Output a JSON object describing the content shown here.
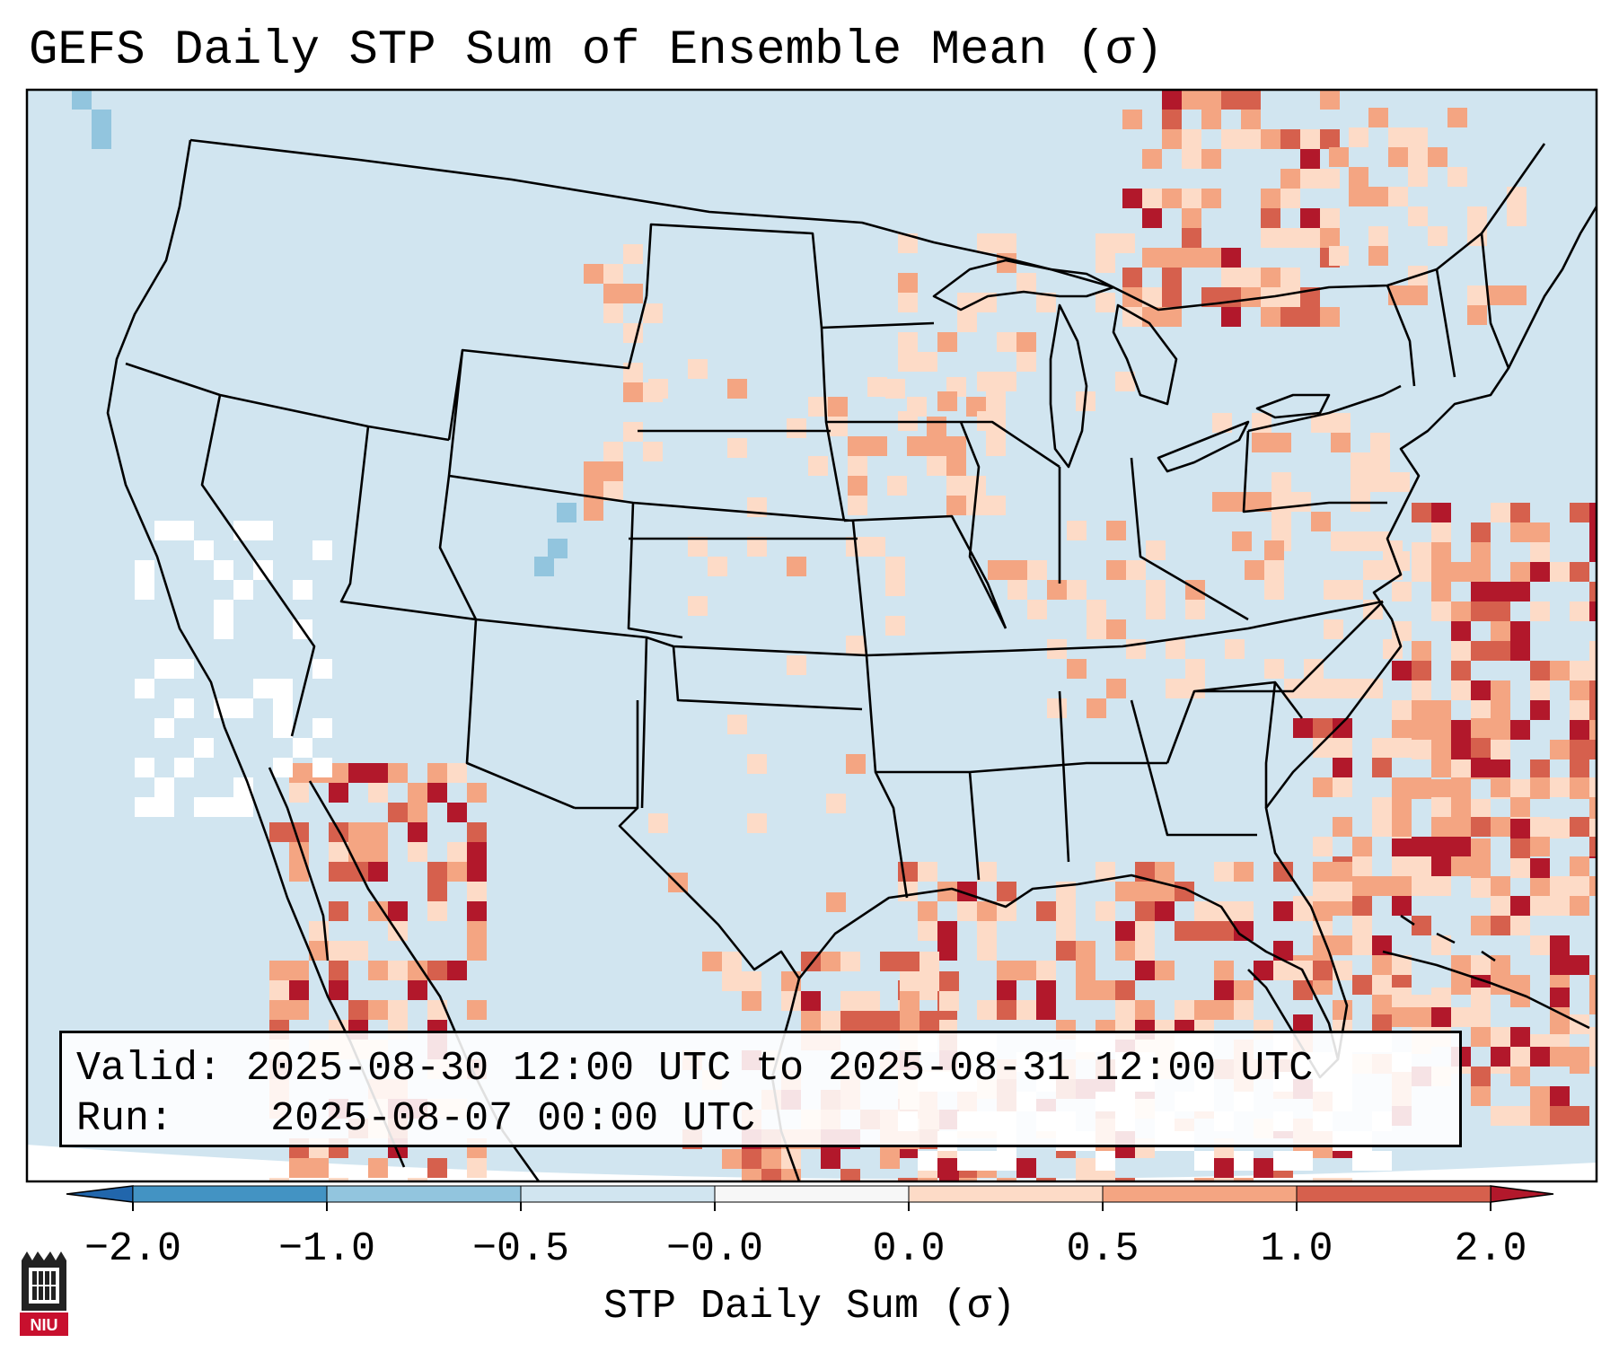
{
  "title": "GEFS Daily STP Sum of Ensemble Mean (σ)",
  "info": {
    "valid_label": "Valid:",
    "valid_value": "2025-08-30 12:00 UTC to 2025-08-31 12:00 UTC",
    "run_label": "Run:",
    "run_value": "2025-08-07 00:00 UTC"
  },
  "colorbar": {
    "label": "STP Daily Sum (σ)",
    "ticks": [
      "−2.0",
      "−1.0",
      "−0.5",
      "−0.0",
      "0.0",
      "0.5",
      "1.0",
      "2.0"
    ],
    "bins": [
      {
        "from": -2.0,
        "to": -1.0,
        "color": "#4393c3"
      },
      {
        "from": -1.0,
        "to": -0.5,
        "color": "#92c5de"
      },
      {
        "from": -0.5,
        "to": -0.0,
        "color": "#d1e5f0"
      },
      {
        "from": -0.0,
        "to": 0.0,
        "color": "#f7f7f7"
      },
      {
        "from": 0.0,
        "to": 0.5,
        "color": "#fddbc7"
      },
      {
        "from": 0.5,
        "to": 1.0,
        "color": "#f4a582"
      },
      {
        "from": 1.0,
        "to": 2.0,
        "color": "#d6604d"
      }
    ],
    "under_color": "#2166ac",
    "over_color": "#b2182b"
  },
  "colors": {
    "background": "#d1e5f0",
    "neutral": "#ffffff",
    "light_red": "#fddbc7",
    "mid_red": "#f4a582",
    "red": "#d6604d",
    "dark_red": "#b2182b",
    "light_blue": "#92c5de",
    "border": "#000000"
  },
  "logo": {
    "text": "NIU",
    "icon": "niu-logo-icon"
  }
}
